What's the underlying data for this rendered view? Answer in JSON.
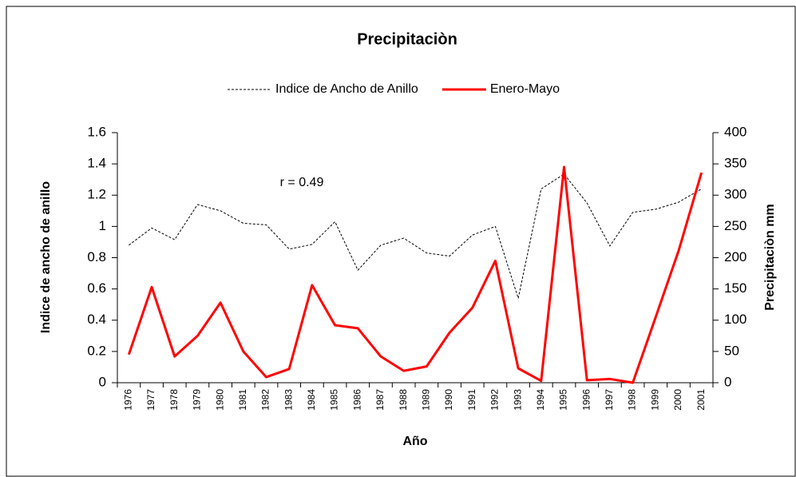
{
  "chart_data": {
    "type": "line",
    "title": "Precipitaciòn",
    "annotation": "r = 0.49",
    "xlabel": "Año",
    "ylabel": "Indice de ancho de anillo",
    "y2label": "Precipitaciòn mm",
    "legend": "top",
    "categories": [
      "1976",
      "1977",
      "1978",
      "1979",
      "1980",
      "1981",
      "1982",
      "1983",
      "1984",
      "1985",
      "1986",
      "1987",
      "1988",
      "1989",
      "1990",
      "1991",
      "1992",
      "1993",
      "1994",
      "1995",
      "1996",
      "1997",
      "1998",
      "1999",
      "2000",
      "2001"
    ],
    "series": [
      {
        "name": "Indice de Ancho de Anillo",
        "color": "#000000",
        "dashed": true,
        "values": [
          0.88,
          0.99,
          0.915,
          1.14,
          1.1,
          1.02,
          1.01,
          0.855,
          0.885,
          1.03,
          0.72,
          0.88,
          0.925,
          0.83,
          0.81,
          0.945,
          1.0,
          0.54,
          1.24,
          1.335,
          1.15,
          0.875,
          1.09,
          1.11,
          1.155,
          1.24
        ]
      },
      {
        "name": "Enero-Mayo",
        "color": "#ff0000",
        "dashed": false,
        "axis": "y2",
        "values": [
          45,
          153,
          42,
          75,
          128,
          50,
          9,
          22,
          156,
          92,
          87,
          42,
          19,
          26,
          80,
          120,
          195,
          23,
          3,
          345,
          4,
          6,
          0,
          105,
          211,
          336
        ]
      }
    ],
    "ylim": [
      0,
      1.6
    ],
    "yticks": [
      0,
      0.2,
      0.4,
      0.6,
      0.8,
      1,
      1.2,
      1.4,
      1.6
    ],
    "y2lim": [
      0,
      400
    ],
    "y2ticks": [
      0,
      50,
      100,
      150,
      200,
      250,
      300,
      350,
      400
    ]
  }
}
